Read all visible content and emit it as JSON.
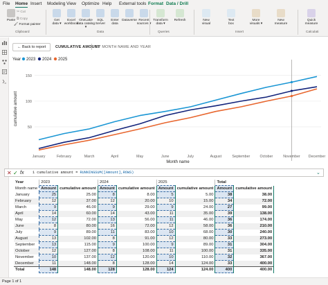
{
  "menu": [
    "File",
    "Home",
    "Insert",
    "Modeling",
    "View",
    "Optimize",
    "Help",
    "External tools",
    "Format",
    "Data / Drill"
  ],
  "ribbon": {
    "clipboard": {
      "paste": "Paste",
      "cut": "Cut",
      "copy": "Copy",
      "format_painter": "Format painter",
      "group": "Clipboard"
    },
    "data": [
      {
        "label": "Get\ndata ▾",
        "icon": "get-data-icon"
      },
      {
        "label": "Excel\nworkbook",
        "icon": "excel-icon"
      },
      {
        "label": "OneLake\ndata catalog ▾",
        "icon": "onelake-icon"
      },
      {
        "label": "SQL\nServer",
        "icon": "sql-server-icon"
      },
      {
        "label": "Enter\ndata",
        "icon": "enter-data-icon"
      },
      {
        "label": "Dataverse",
        "icon": "dataverse-icon"
      },
      {
        "label": "Recent\nsources ▾",
        "icon": "recent-sources-icon"
      }
    ],
    "data_group": "Data",
    "queries": [
      {
        "label": "Transform\ndata ▾",
        "icon": "transform-icon"
      },
      {
        "label": "Refresh\n",
        "icon": "refresh-icon"
      }
    ],
    "queries_group": "Queries",
    "insert": [
      {
        "label": "New\nvisual",
        "icon": "new-visual-icon"
      },
      {
        "label": "Text\nbox",
        "icon": "text-box-icon"
      },
      {
        "label": "More\nvisuals ▾",
        "icon": "more-visuals-icon"
      },
      {
        "label": "New\nmeasure",
        "icon": "new-measure-icon"
      }
    ],
    "insert_group": "Insert",
    "calc": [
      {
        "label": "Quick\nmeasure",
        "icon": "quick-measure-icon"
      }
    ],
    "calc_group": "Calculati"
  },
  "visual": {
    "back": "Back to report",
    "title": "CUMULATIVE AMOUNT",
    "subtitle": "BY MONTH NAME AND YEAR"
  },
  "colors": {
    "y2023": "#1a96d4",
    "y2024": "#12237a",
    "y2025": "#e8662e",
    "accent": "#117865"
  },
  "chart_data": {
    "type": "line",
    "legend_title": "Year",
    "legend_position": "top-left",
    "ylabel": "cumulative amount",
    "xlabel": "Month name",
    "ylim": [
      0,
      170
    ],
    "yticks": [
      50,
      100,
      150
    ],
    "categories": [
      "January",
      "February",
      "March",
      "April",
      "May",
      "June",
      "July",
      "August",
      "September",
      "October",
      "November",
      "December"
    ],
    "series": [
      {
        "name": "2023",
        "color": "#1a96d4",
        "values": [
          25,
          37,
          46,
          60,
          72,
          80,
          89,
          102,
          115,
          127,
          137,
          148
        ]
      },
      {
        "name": "2024",
        "color": "#12237a",
        "values": [
          8,
          20,
          29,
          43,
          56,
          72,
          83,
          91,
          100,
          108,
          120,
          128
        ]
      },
      {
        "name": "2025",
        "color": "#e8662e",
        "values": [
          5,
          15,
          24,
          35,
          46,
          58,
          68,
          80,
          89,
          100,
          110,
          124
        ]
      }
    ]
  },
  "formula": {
    "line": "1",
    "text_pre": "cumulative amount = ",
    "text_fn": "RUNNINGSUM([Amount],ROWS)"
  },
  "matrix": {
    "col_year": "Year",
    "row_header": "Month name",
    "years": [
      "2023",
      "2024",
      "2025",
      "Total"
    ],
    "amount_h": "Amount",
    "cum_h": "cumulative amount",
    "rows": [
      {
        "m": "January",
        "v": [
          "25",
          "25.00",
          "8",
          "8.00",
          "5",
          "5.00",
          "38",
          "38.00"
        ]
      },
      {
        "m": "February",
        "v": [
          "12",
          "37.00",
          "12",
          "20.00",
          "10",
          "15.00",
          "34",
          "72.00"
        ]
      },
      {
        "m": "March",
        "v": [
          "9",
          "46.00",
          "9",
          "29.00",
          "9",
          "24.00",
          "27",
          "99.00"
        ]
      },
      {
        "m": "April",
        "v": [
          "14",
          "60.00",
          "14",
          "43.00",
          "11",
          "35.00",
          "39",
          "138.00"
        ]
      },
      {
        "m": "May",
        "v": [
          "12",
          "72.00",
          "13",
          "56.00",
          "11",
          "46.00",
          "36",
          "174.00"
        ]
      },
      {
        "m": "June",
        "v": [
          "8",
          "80.00",
          "16",
          "72.00",
          "12",
          "58.00",
          "36",
          "210.00"
        ]
      },
      {
        "m": "July",
        "v": [
          "9",
          "89.00",
          "11",
          "83.00",
          "10",
          "68.00",
          "30",
          "240.00"
        ]
      },
      {
        "m": "August",
        "v": [
          "13",
          "102.00",
          "8",
          "91.00",
          "12",
          "80.00",
          "33",
          "273.00"
        ]
      },
      {
        "m": "September",
        "v": [
          "13",
          "115.00",
          "9",
          "100.00",
          "9",
          "89.00",
          "31",
          "304.00"
        ]
      },
      {
        "m": "October",
        "v": [
          "12",
          "127.00",
          "8",
          "108.00",
          "11",
          "100.00",
          "31",
          "335.00"
        ]
      },
      {
        "m": "November",
        "v": [
          "10",
          "137.00",
          "12",
          "120.00",
          "10",
          "110.00",
          "32",
          "367.00"
        ]
      },
      {
        "m": "December",
        "v": [
          "11",
          "148.00",
          "8",
          "128.00",
          "14",
          "124.00",
          "33",
          "400.00"
        ]
      }
    ],
    "total": {
      "m": "Total",
      "v": [
        "148",
        "148.00",
        "128",
        "128.00",
        "124",
        "124.00",
        "400",
        "400.00"
      ]
    }
  },
  "status": "Page 1 of 1"
}
